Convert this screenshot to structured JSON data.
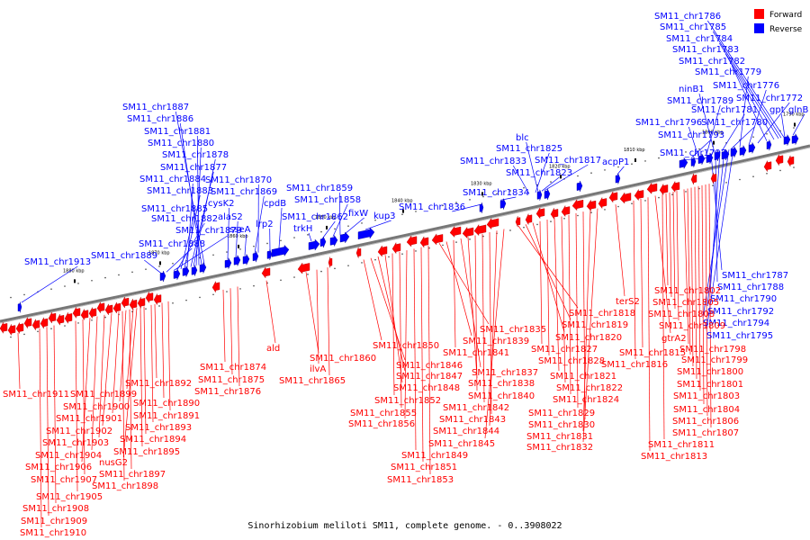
{
  "caption": "Sinorhizobium meliloti SM11, complete genome. - 0..3908022",
  "legend": [
    {
      "label": "Forward",
      "color": "#ff0000"
    },
    {
      "label": "Reverse",
      "color": "#0000ff"
    }
  ],
  "colors": {
    "forward": "#ff0000",
    "forward_dark": "#b30000",
    "reverse": "#0000ff",
    "reverse_dark": "#00009a",
    "backbone": "#777777"
  },
  "ticks": [
    "1880 kbp",
    "1870 kbp",
    "1860 kbp",
    "1850 kbp",
    "1840 kbp",
    "1830 kbp",
    "1820 kbp",
    "1810 kbp",
    "1800 kbp",
    "1790 kbp"
  ],
  "reverse_labels": [
    "SM11_chr1913",
    "SM11_chr1889",
    "SM11_chr1888",
    "SM11_chr1879",
    "SM11_chr1882",
    "SM11_chr1885",
    "SM11_chr1883",
    "SM11_chr1884",
    "SM11_chr1877",
    "SM11_chr1878",
    "SM11_chr1880",
    "SM11_chr1881",
    "SM11_chr1886",
    "SM11_chr1887",
    "cysK2",
    "alaS2",
    "sseA",
    "SM11_chr1869",
    "SM11_chr1870",
    "lrp2",
    "cpdB",
    "trkH",
    "SM11_chr1862",
    "SM11_chr1858",
    "SM11_chr1859",
    "fixW",
    "kup3",
    "SM11_chr1836",
    "SM11_chr1834",
    "SM11_chr1833",
    "SM11_chr1825",
    "blc",
    "SM11_chr1823",
    "SM11_chr1817",
    "acpP1",
    "SM11_chr1797",
    "SM11_chr1793",
    "SM11_chr1796",
    "SM11_chr1789",
    "ninB1",
    "SM11_chr1781",
    "SM11_chr1780",
    "SM11_chr1779",
    "SM11_chr1776",
    "SM11_chr1772",
    "gpt",
    "glnB",
    "SM11_chr1782",
    "SM11_chr1783",
    "SM11_chr1784",
    "SM11_chr1785",
    "SM11_chr1786",
    "SM11_chr1787",
    "SM11_chr1788",
    "SM11_chr1790",
    "SM11_chr1792",
    "SM11_chr1794",
    "SM11_chr1795"
  ],
  "forward_labels": [
    "SM11_chr1911",
    "SM11_chr1899",
    "SM11_chr1900",
    "SM11_chr1901",
    "SM11_chr1902",
    "SM11_chr1903",
    "SM11_chr1904",
    "SM11_chr1906",
    "SM11_chr1907",
    "SM11_chr1905",
    "SM11_chr1908",
    "SM11_chr1909",
    "SM11_chr1910",
    "SM11_chr1892",
    "SM11_chr1890",
    "SM11_chr1891",
    "SM11_chr1893",
    "SM11_chr1894",
    "SM11_chr1895",
    "nusG2",
    "SM11_chr1897",
    "SM11_chr1898",
    "SM11_chr1874",
    "SM11_chr1875",
    "SM11_chr1876",
    "ald",
    "SM11_chr1860",
    "ilvA",
    "SM11_chr1865",
    "SM11_chr1850",
    "SM11_chr1846",
    "SM11_chr1847",
    "SM11_chr1848",
    "SM11_chr1852",
    "SM11_chr1855",
    "SM11_chr1856",
    "SM11_chr1849",
    "SM11_chr1851",
    "SM11_chr1853",
    "SM11_chr1835",
    "SM11_chr1839",
    "SM11_chr1841",
    "SM11_chr1837",
    "SM11_chr1838",
    "SM11_chr1840",
    "SM11_chr1842",
    "SM11_chr1843",
    "SM11_chr1844",
    "SM11_chr1845",
    "SM11_chr1818",
    "SM11_chr1819",
    "SM11_chr1820",
    "SM11_chr1827",
    "SM11_chr1828",
    "SM11_chr1821",
    "SM11_chr1822",
    "SM11_chr1824",
    "SM11_chr1829",
    "SM11_chr1830",
    "SM11_chr1831",
    "SM11_chr1832",
    "terS2",
    "SM11_chr1802",
    "SM11_chr1805",
    "SM11_chr1808",
    "SM11_chr1809",
    "gtrA2",
    "SM11_chr1815",
    "SM11_chr1816",
    "SM11_chr1798",
    "SM11_chr1799",
    "SM11_chr1800",
    "SM11_chr1801",
    "SM11_chr1803",
    "SM11_chr1804",
    "SM11_chr1806",
    "SM11_chr1807",
    "SM11_chr1811",
    "SM11_chr1813"
  ]
}
